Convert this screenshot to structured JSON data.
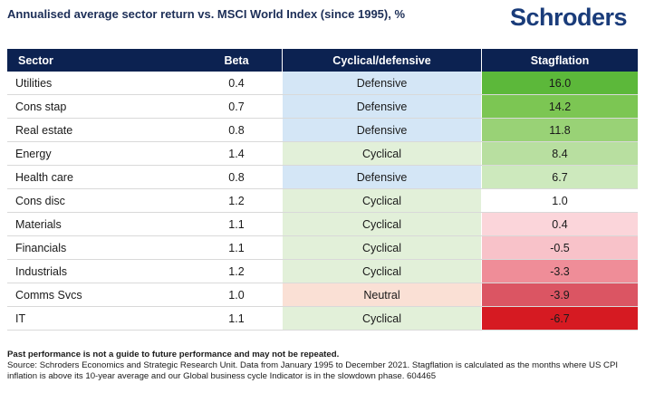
{
  "title": "Annualised average sector return vs. MSCI World Index (since 1995), %",
  "logo": "Schroders",
  "colors": {
    "header_bg": "#0c2251",
    "defensive_bg": "#d4e6f6",
    "cyclical_bg": "#e2f0d9",
    "neutral_bg": "#fae0d5",
    "logo_color": "#1a3c7a"
  },
  "table": {
    "headers": [
      "Sector",
      "Beta",
      "Cyclical/defensive",
      "Stagflation"
    ],
    "rows": [
      {
        "sector": "Utilities",
        "beta": "0.4",
        "type": "Defensive",
        "stagflation": "16.0",
        "stag_color": "#5cb83a",
        "type_color": "#d4e6f6"
      },
      {
        "sector": "Cons stap",
        "beta": "0.7",
        "type": "Defensive",
        "stagflation": "14.2",
        "stag_color": "#7cc653",
        "type_color": "#d4e6f6"
      },
      {
        "sector": "Real estate",
        "beta": "0.8",
        "type": "Defensive",
        "stagflation": "11.8",
        "stag_color": "#99d276",
        "type_color": "#d4e6f6"
      },
      {
        "sector": "Energy",
        "beta": "1.4",
        "type": "Cyclical",
        "stagflation": "8.4",
        "stag_color": "#b8dfa0",
        "type_color": "#e2f0d9"
      },
      {
        "sector": "Health care",
        "beta": "0.8",
        "type": "Defensive",
        "stagflation": "6.7",
        "stag_color": "#cde9bd",
        "type_color": "#d4e6f6"
      },
      {
        "sector": "Cons disc",
        "beta": "1.2",
        "type": "Cyclical",
        "stagflation": "1.0",
        "stag_color": "#ffffff",
        "type_color": "#e2f0d9"
      },
      {
        "sector": "Materials",
        "beta": "1.1",
        "type": "Cyclical",
        "stagflation": "0.4",
        "stag_color": "#fbd5da",
        "type_color": "#e2f0d9"
      },
      {
        "sector": "Financials",
        "beta": "1.1",
        "type": "Cyclical",
        "stagflation": "-0.5",
        "stag_color": "#f8c2c9",
        "type_color": "#e2f0d9"
      },
      {
        "sector": "Industrials",
        "beta": "1.2",
        "type": "Cyclical",
        "stagflation": "-3.3",
        "stag_color": "#ef8d98",
        "type_color": "#e2f0d9"
      },
      {
        "sector": "Comms Svcs",
        "beta": "1.0",
        "type": "Neutral",
        "stagflation": "-3.9",
        "stag_color": "#db5563",
        "type_color": "#fae0d5"
      },
      {
        "sector": "IT",
        "beta": "1.1",
        "type": "Cyclical",
        "stagflation": "-6.7",
        "stag_color": "#d61a22",
        "type_color": "#e2f0d9"
      }
    ]
  },
  "footnote": {
    "disclaimer": "Past performance is not a guide to future performance and may not be repeated.",
    "source": "Source: Schroders Economics and Strategic Research Unit. Data from January 1995 to December 2021. Stagflation is calculated as the months where US CPI inflation is above its 10-year average and our Global business cycle Indicator is in the slowdown phase. 604465"
  }
}
